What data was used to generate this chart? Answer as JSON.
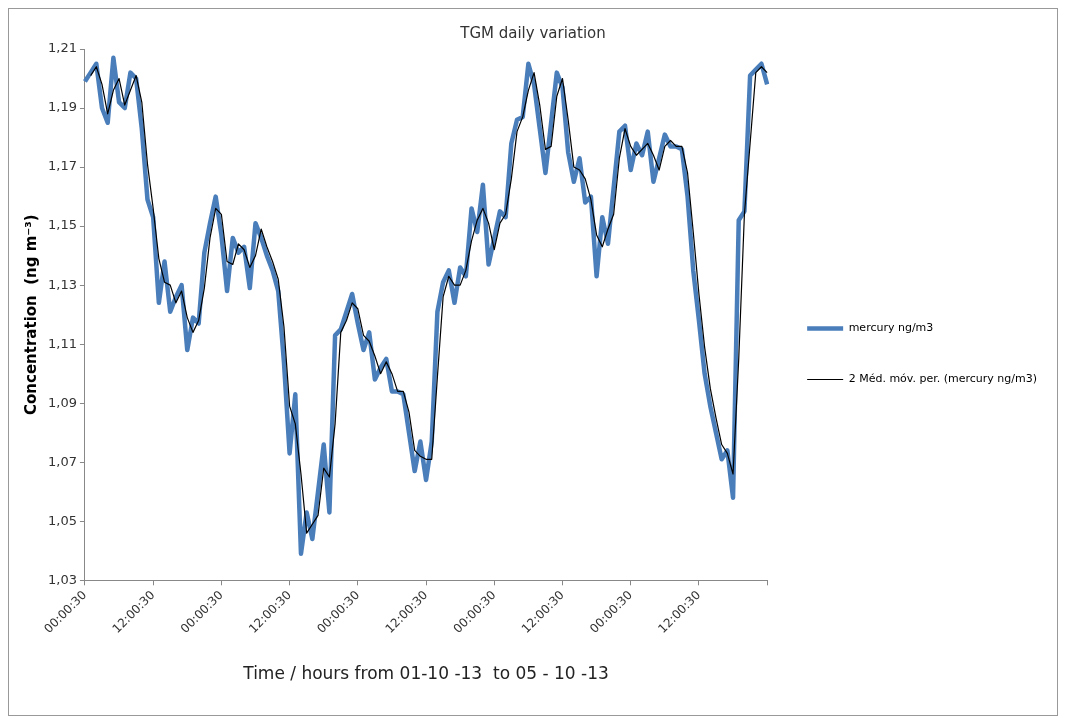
{
  "chart_data": {
    "type": "line",
    "title": "TGM daily variation",
    "xlabel": "Time / hours from 01-10 -13  to 05 - 10 -13",
    "ylabel": "Concentration  (ng m⁻³)",
    "categories": [
      "00:00:30",
      null,
      null,
      null,
      null,
      null,
      null,
      null,
      null,
      null,
      null,
      null,
      "12:00:30",
      null,
      null,
      null,
      null,
      null,
      null,
      null,
      null,
      null,
      null,
      null,
      "00:00:30",
      null,
      null,
      null,
      null,
      null,
      null,
      null,
      null,
      null,
      null,
      null,
      "12:00:30",
      null,
      null,
      null,
      null,
      null,
      null,
      null,
      null,
      null,
      null,
      null,
      "00:00:30",
      null,
      null,
      null,
      null,
      null,
      null,
      null,
      null,
      null,
      null,
      null,
      "12:00:30",
      null,
      null,
      null,
      null,
      null,
      null,
      null,
      null,
      null,
      null,
      null,
      "00:00:30",
      null,
      null,
      null,
      null,
      null,
      null,
      null,
      null,
      null,
      null,
      null,
      "12:00:30",
      null,
      null,
      null,
      null,
      null,
      null,
      null,
      null,
      null,
      null,
      null,
      "00:00:30",
      null,
      null,
      null,
      null,
      null,
      null,
      null,
      null,
      null,
      null,
      null,
      "12:00:30",
      null,
      null,
      null,
      null,
      null,
      null,
      null,
      null,
      null,
      null,
      null,
      null
    ],
    "series": [
      {
        "name": "mercury ng/m3",
        "color": "#4a7ebb",
        "values": [
          1.199,
          1.202,
          1.205,
          1.19,
          1.185,
          1.207,
          1.192,
          1.19,
          1.202,
          1.2,
          1.183,
          1.159,
          1.153,
          1.124,
          1.138,
          1.121,
          1.126,
          1.13,
          1.108,
          1.119,
          1.117,
          1.141,
          1.151,
          1.16,
          1.147,
          1.128,
          1.146,
          1.141,
          1.143,
          1.129,
          1.151,
          1.146,
          1.14,
          1.135,
          1.128,
          1.104,
          1.073,
          1.093,
          1.039,
          1.053,
          1.044,
          1.06,
          1.076,
          1.053,
          1.113,
          1.115,
          1.121,
          1.127,
          1.117,
          1.108,
          1.114,
          1.098,
          1.102,
          1.105,
          1.094,
          1.094,
          1.093,
          1.08,
          1.067,
          1.077,
          1.064,
          1.077,
          1.121,
          1.131,
          1.135,
          1.124,
          1.136,
          1.133,
          1.156,
          1.148,
          1.164,
          1.137,
          1.146,
          1.155,
          1.153,
          1.178,
          1.186,
          1.187,
          1.205,
          1.198,
          1.183,
          1.168,
          1.185,
          1.202,
          1.197,
          1.175,
          1.165,
          1.173,
          1.158,
          1.16,
          1.133,
          1.153,
          1.144,
          1.163,
          1.182,
          1.184,
          1.169,
          1.178,
          1.174,
          1.182,
          1.165,
          1.173,
          1.181,
          1.177,
          1.177,
          1.176,
          1.16,
          1.135,
          1.118,
          1.1,
          1.089,
          1.08,
          1.071,
          1.074,
          1.058,
          1.152,
          1.155,
          1.201,
          1.203,
          1.205,
          1.198
        ]
      },
      {
        "name": "2 Méd. móv. per. (mercury ng/m3)",
        "color": "#000000",
        "values": [
          null,
          1.201,
          1.204,
          1.198,
          1.188,
          1.196,
          1.2,
          1.191,
          1.196,
          1.201,
          1.192,
          1.171,
          1.156,
          1.139,
          1.131,
          1.13,
          1.124,
          1.128,
          1.119,
          1.114,
          1.118,
          1.129,
          1.146,
          1.156,
          1.154,
          1.138,
          1.137,
          1.144,
          1.142,
          1.136,
          1.14,
          1.149,
          1.143,
          1.138,
          1.132,
          1.116,
          1.089,
          1.083,
          1.066,
          1.046,
          1.049,
          1.052,
          1.068,
          1.065,
          1.083,
          1.114,
          1.118,
          1.124,
          1.122,
          1.113,
          1.111,
          1.106,
          1.1,
          1.104,
          1.1,
          1.094,
          1.094,
          1.087,
          1.074,
          1.072,
          1.071,
          1.071,
          1.099,
          1.126,
          1.133,
          1.13,
          1.13,
          1.135,
          1.145,
          1.152,
          1.156,
          1.151,
          1.142,
          1.151,
          1.154,
          1.166,
          1.182,
          1.187,
          1.196,
          1.202,
          1.191,
          1.176,
          1.177,
          1.194,
          1.2,
          1.186,
          1.17,
          1.169,
          1.166,
          1.159,
          1.147,
          1.143,
          1.149,
          1.154,
          1.173,
          1.183,
          1.177,
          1.174,
          1.176,
          1.178,
          1.174,
          1.169,
          1.177,
          1.179,
          1.177,
          1.177,
          1.168,
          1.148,
          1.127,
          1.109,
          1.095,
          1.085,
          1.076,
          1.073,
          1.066,
          1.105,
          1.154,
          1.178,
          1.202,
          1.204,
          1.202
        ]
      }
    ],
    "ylim": [
      1.03,
      1.21
    ],
    "yticks": [
      {
        "value": 1.03,
        "label": "1,03"
      },
      {
        "value": 1.05,
        "label": "1,05"
      },
      {
        "value": 1.07,
        "label": "1,07"
      },
      {
        "value": 1.09,
        "label": "1,09"
      },
      {
        "value": 1.11,
        "label": "1,11"
      },
      {
        "value": 1.13,
        "label": "1,13"
      },
      {
        "value": 1.15,
        "label": "1,15"
      },
      {
        "value": 1.17,
        "label": "1,17"
      },
      {
        "value": 1.19,
        "label": "1,19"
      },
      {
        "value": 1.21,
        "label": "1,21"
      }
    ],
    "grid": false,
    "legend": "right",
    "marker": "none",
    "line_style": "solid"
  }
}
